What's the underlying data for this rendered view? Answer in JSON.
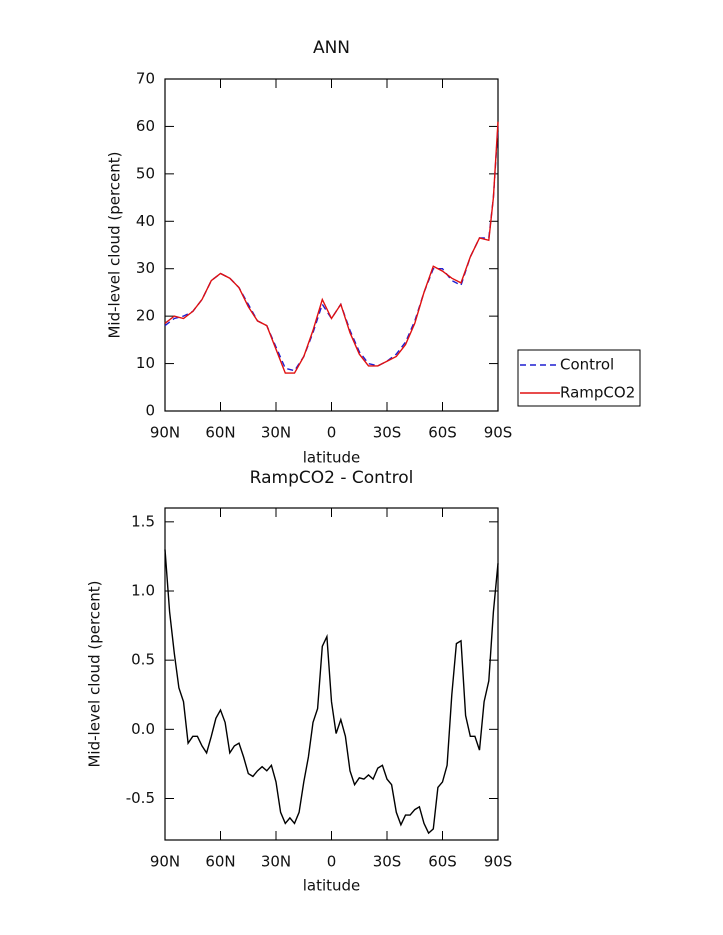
{
  "chart_data": [
    {
      "type": "line",
      "title": "ANN",
      "x_label": "latitude",
      "y_label": "Mid-level cloud (percent)",
      "x": [
        90,
        85,
        80,
        75,
        70,
        65,
        60,
        55,
        50,
        45,
        40,
        35,
        30,
        25,
        20,
        15,
        10,
        5,
        0,
        -5,
        -10,
        -15,
        -20,
        -25,
        -30,
        -35,
        -40,
        -45,
        -50,
        -55,
        -60,
        -65,
        -70,
        -75,
        -80,
        -85,
        -87.5,
        -90
      ],
      "series": [
        {
          "name": "Control",
          "color": "#1f1fd0",
          "line_style": "dashed",
          "values": [
            18,
            19.5,
            20,
            21,
            23.5,
            27.5,
            29,
            28,
            26,
            22.5,
            19,
            18,
            13.5,
            9,
            8.5,
            11.5,
            16.5,
            22.5,
            19.5,
            22.5,
            17,
            12.5,
            10,
            9.5,
            10.5,
            12,
            14.5,
            19,
            25,
            30,
            30,
            27.5,
            26.5,
            32.5,
            36.5,
            36.5,
            45,
            60
          ]
        },
        {
          "name": "RampCO2",
          "color": "#e01010",
          "line_style": "solid",
          "values": [
            18.5,
            20,
            19.5,
            21,
            23.5,
            27.5,
            29,
            28,
            26,
            22,
            19,
            18,
            13,
            8,
            8,
            11.5,
            17,
            23.5,
            19.5,
            22.5,
            16.5,
            12,
            9.5,
            9.5,
            10.5,
            11.5,
            14,
            18.5,
            25,
            30.5,
            29.5,
            28,
            27,
            32.5,
            36.5,
            36,
            45,
            61
          ]
        }
      ],
      "xlim": [
        90,
        -90
      ],
      "xticks": [
        {
          "value": 90,
          "label": "90N"
        },
        {
          "value": 60,
          "label": "60N"
        },
        {
          "value": 30,
          "label": "30N"
        },
        0,
        {
          "value": -30,
          "label": "30S"
        },
        {
          "value": -60,
          "label": "60S"
        },
        {
          "value": -90,
          "label": "90S"
        }
      ],
      "ylim": [
        0,
        70
      ],
      "yticks": [
        0,
        10,
        20,
        30,
        40,
        50,
        60,
        70
      ],
      "legend": "right"
    },
    {
      "type": "line",
      "title": "RampCO2 - Control",
      "x_label": "latitude",
      "y_label": "Mid-level cloud (percent)",
      "x": [
        90,
        87.5,
        85,
        82.5,
        80,
        77.5,
        75,
        72.5,
        70,
        67.5,
        65,
        62.5,
        60,
        57.5,
        55,
        52.5,
        50,
        47.5,
        45,
        42.5,
        40,
        37.5,
        35,
        32.5,
        30,
        27.5,
        25,
        22.5,
        20,
        17.5,
        15,
        12.5,
        10,
        7.5,
        5,
        2.5,
        0,
        -2.5,
        -5,
        -7.5,
        -10,
        -12.5,
        -15,
        -17.5,
        -20,
        -22.5,
        -25,
        -27.5,
        -30,
        -32.5,
        -35,
        -37.5,
        -40,
        -42.5,
        -45,
        -47.5,
        -50,
        -52.5,
        -55,
        -57.5,
        -60,
        -62.5,
        -65,
        -67.5,
        -70,
        -72.5,
        -75,
        -77.5,
        -80,
        -82.5,
        -85,
        -87.5,
        -90
      ],
      "values": [
        1.3,
        0.85,
        0.55,
        0.3,
        0.2,
        -0.1,
        -0.05,
        -0.05,
        -0.12,
        -0.17,
        -0.05,
        0.08,
        0.14,
        0.05,
        -0.17,
        -0.12,
        -0.1,
        -0.2,
        -0.32,
        -0.34,
        -0.3,
        -0.27,
        -0.3,
        -0.26,
        -0.38,
        -0.6,
        -0.68,
        -0.64,
        -0.68,
        -0.6,
        -0.38,
        -0.2,
        0.05,
        0.15,
        0.6,
        0.67,
        0.2,
        -0.03,
        0.07,
        -0.05,
        -0.3,
        -0.4,
        -0.35,
        -0.36,
        -0.33,
        -0.36,
        -0.28,
        -0.26,
        -0.36,
        -0.4,
        -0.6,
        -0.69,
        -0.62,
        -0.62,
        -0.58,
        -0.56,
        -0.68,
        -0.75,
        -0.72,
        -0.42,
        -0.38,
        -0.26,
        0.25,
        0.62,
        0.64,
        0.1,
        -0.05,
        -0.05,
        -0.15,
        0.2,
        0.35,
        0.85,
        1.2
      ],
      "color": "#000000",
      "xlim": [
        90,
        -90
      ],
      "xticks": [
        {
          "value": 90,
          "label": "90N"
        },
        {
          "value": 60,
          "label": "60N"
        },
        {
          "value": 30,
          "label": "30N"
        },
        0,
        {
          "value": -30,
          "label": "30S"
        },
        {
          "value": -60,
          "label": "60S"
        },
        {
          "value": -90,
          "label": "90S"
        }
      ],
      "ylim": [
        -0.8,
        1.6
      ],
      "yticks": [
        -0.5,
        {
          "value": 0,
          "label": "0.0"
        },
        0.5,
        {
          "value": 1,
          "label": "1.0"
        },
        1.5
      ]
    }
  ]
}
